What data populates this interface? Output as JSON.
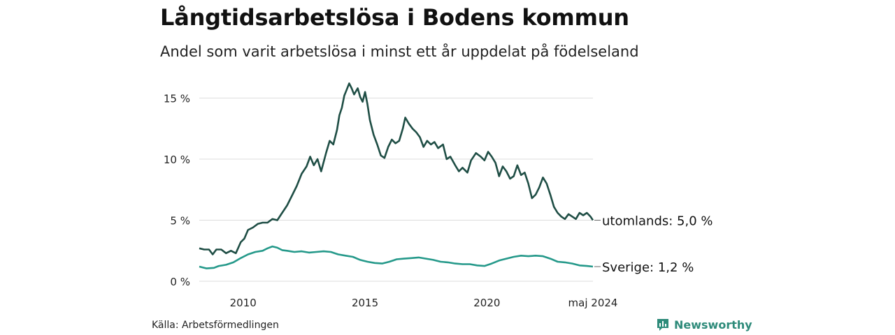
{
  "title": "Långtidsarbetslösa i Bodens kommun",
  "subtitle": "Andel som varit arbetslösa i minst ett år uppdelat på födelseland",
  "source": "Källa: Arbetsförmedlingen",
  "brand": "Newsworthy",
  "colors": {
    "utomlands": "#1f4e45",
    "sverige": "#25998a",
    "grid": "#dddddd",
    "brand": "#2e8b7a"
  },
  "chart_data": {
    "type": "line",
    "title": "Långtidsarbetslösa i Bodens kommun",
    "xlabel": "",
    "ylabel": "",
    "xlim": [
      2008.2,
      2024.35
    ],
    "ylim": [
      0,
      16
    ],
    "y_ticks": [
      {
        "value": 0,
        "label": "0 %"
      },
      {
        "value": 5,
        "label": "5 %"
      },
      {
        "value": 10,
        "label": "10 %"
      },
      {
        "value": 15,
        "label": "15 %"
      }
    ],
    "x_ticks": [
      {
        "value": 2010,
        "label": "2010"
      },
      {
        "value": 2015,
        "label": "2015"
      },
      {
        "value": 2020,
        "label": "2020"
      },
      {
        "value": 2024.35,
        "label": "maj 2024"
      }
    ],
    "series": [
      {
        "name": "utomlands",
        "end_label": "utomlands: 5,0 %",
        "points": [
          [
            2008.2,
            2.7
          ],
          [
            2008.4,
            2.6
          ],
          [
            2008.6,
            2.6
          ],
          [
            2008.75,
            2.2
          ],
          [
            2008.9,
            2.6
          ],
          [
            2009.1,
            2.6
          ],
          [
            2009.3,
            2.3
          ],
          [
            2009.5,
            2.5
          ],
          [
            2009.7,
            2.3
          ],
          [
            2009.9,
            3.2
          ],
          [
            2010.05,
            3.5
          ],
          [
            2010.2,
            4.2
          ],
          [
            2010.4,
            4.4
          ],
          [
            2010.6,
            4.7
          ],
          [
            2010.8,
            4.8
          ],
          [
            2011.0,
            4.8
          ],
          [
            2011.2,
            5.1
          ],
          [
            2011.4,
            5.0
          ],
          [
            2011.6,
            5.6
          ],
          [
            2011.8,
            6.2
          ],
          [
            2012.0,
            7.0
          ],
          [
            2012.2,
            7.8
          ],
          [
            2012.4,
            8.8
          ],
          [
            2012.6,
            9.4
          ],
          [
            2012.75,
            10.2
          ],
          [
            2012.9,
            9.5
          ],
          [
            2013.05,
            10.0
          ],
          [
            2013.2,
            9.0
          ],
          [
            2013.4,
            10.5
          ],
          [
            2013.55,
            11.5
          ],
          [
            2013.7,
            11.2
          ],
          [
            2013.85,
            12.4
          ],
          [
            2013.95,
            13.6
          ],
          [
            2014.05,
            14.2
          ],
          [
            2014.15,
            15.2
          ],
          [
            2014.25,
            15.7
          ],
          [
            2014.35,
            16.2
          ],
          [
            2014.45,
            15.8
          ],
          [
            2014.55,
            15.3
          ],
          [
            2014.7,
            15.8
          ],
          [
            2014.8,
            15.1
          ],
          [
            2014.9,
            14.7
          ],
          [
            2015.0,
            15.5
          ],
          [
            2015.1,
            14.5
          ],
          [
            2015.2,
            13.2
          ],
          [
            2015.35,
            12.0
          ],
          [
            2015.5,
            11.2
          ],
          [
            2015.65,
            10.3
          ],
          [
            2015.8,
            10.1
          ],
          [
            2015.95,
            11.0
          ],
          [
            2016.1,
            11.6
          ],
          [
            2016.25,
            11.3
          ],
          [
            2016.4,
            11.5
          ],
          [
            2016.55,
            12.5
          ],
          [
            2016.65,
            13.4
          ],
          [
            2016.8,
            12.9
          ],
          [
            2016.95,
            12.5
          ],
          [
            2017.1,
            12.2
          ],
          [
            2017.25,
            11.8
          ],
          [
            2017.4,
            11.0
          ],
          [
            2017.55,
            11.5
          ],
          [
            2017.7,
            11.2
          ],
          [
            2017.85,
            11.4
          ],
          [
            2018.0,
            10.9
          ],
          [
            2018.2,
            11.2
          ],
          [
            2018.35,
            10.0
          ],
          [
            2018.5,
            10.2
          ],
          [
            2018.7,
            9.5
          ],
          [
            2018.85,
            9.0
          ],
          [
            2019.0,
            9.3
          ],
          [
            2019.2,
            8.9
          ],
          [
            2019.35,
            9.9
          ],
          [
            2019.55,
            10.5
          ],
          [
            2019.75,
            10.2
          ],
          [
            2019.9,
            9.9
          ],
          [
            2020.05,
            10.6
          ],
          [
            2020.2,
            10.2
          ],
          [
            2020.35,
            9.7
          ],
          [
            2020.5,
            8.6
          ],
          [
            2020.65,
            9.4
          ],
          [
            2020.8,
            9.0
          ],
          [
            2020.95,
            8.4
          ],
          [
            2021.1,
            8.6
          ],
          [
            2021.25,
            9.5
          ],
          [
            2021.4,
            8.7
          ],
          [
            2021.55,
            8.9
          ],
          [
            2021.7,
            8.0
          ],
          [
            2021.85,
            6.8
          ],
          [
            2022.0,
            7.1
          ],
          [
            2022.15,
            7.7
          ],
          [
            2022.3,
            8.5
          ],
          [
            2022.45,
            8.0
          ],
          [
            2022.6,
            7.1
          ],
          [
            2022.75,
            6.1
          ],
          [
            2022.9,
            5.6
          ],
          [
            2023.05,
            5.3
          ],
          [
            2023.2,
            5.1
          ],
          [
            2023.35,
            5.5
          ],
          [
            2023.5,
            5.3
          ],
          [
            2023.65,
            5.1
          ],
          [
            2023.8,
            5.6
          ],
          [
            2023.95,
            5.4
          ],
          [
            2024.1,
            5.6
          ],
          [
            2024.25,
            5.3
          ],
          [
            2024.35,
            5.0
          ]
        ]
      },
      {
        "name": "Sverige",
        "end_label": "Sverige: 1,2 %",
        "points": [
          [
            2008.2,
            1.2
          ],
          [
            2008.5,
            1.05
          ],
          [
            2008.8,
            1.1
          ],
          [
            2009.0,
            1.25
          ],
          [
            2009.3,
            1.35
          ],
          [
            2009.6,
            1.55
          ],
          [
            2009.9,
            1.9
          ],
          [
            2010.2,
            2.2
          ],
          [
            2010.5,
            2.4
          ],
          [
            2010.8,
            2.5
          ],
          [
            2011.0,
            2.7
          ],
          [
            2011.2,
            2.85
          ],
          [
            2011.4,
            2.75
          ],
          [
            2011.6,
            2.55
          ],
          [
            2011.8,
            2.5
          ],
          [
            2012.1,
            2.4
          ],
          [
            2012.4,
            2.45
          ],
          [
            2012.7,
            2.35
          ],
          [
            2013.0,
            2.4
          ],
          [
            2013.3,
            2.45
          ],
          [
            2013.6,
            2.4
          ],
          [
            2013.9,
            2.2
          ],
          [
            2014.2,
            2.1
          ],
          [
            2014.5,
            2.0
          ],
          [
            2014.8,
            1.75
          ],
          [
            2015.1,
            1.6
          ],
          [
            2015.4,
            1.5
          ],
          [
            2015.7,
            1.45
          ],
          [
            2016.0,
            1.6
          ],
          [
            2016.3,
            1.8
          ],
          [
            2016.6,
            1.85
          ],
          [
            2016.9,
            1.9
          ],
          [
            2017.2,
            1.95
          ],
          [
            2017.5,
            1.85
          ],
          [
            2017.8,
            1.75
          ],
          [
            2018.1,
            1.6
          ],
          [
            2018.4,
            1.55
          ],
          [
            2018.7,
            1.45
          ],
          [
            2019.0,
            1.4
          ],
          [
            2019.3,
            1.4
          ],
          [
            2019.6,
            1.3
          ],
          [
            2019.9,
            1.25
          ],
          [
            2020.2,
            1.45
          ],
          [
            2020.5,
            1.7
          ],
          [
            2020.8,
            1.85
          ],
          [
            2021.1,
            2.0
          ],
          [
            2021.4,
            2.1
          ],
          [
            2021.7,
            2.05
          ],
          [
            2022.0,
            2.1
          ],
          [
            2022.3,
            2.05
          ],
          [
            2022.6,
            1.85
          ],
          [
            2022.9,
            1.6
          ],
          [
            2023.2,
            1.55
          ],
          [
            2023.5,
            1.45
          ],
          [
            2023.8,
            1.3
          ],
          [
            2024.1,
            1.25
          ],
          [
            2024.35,
            1.2
          ]
        ]
      }
    ]
  }
}
